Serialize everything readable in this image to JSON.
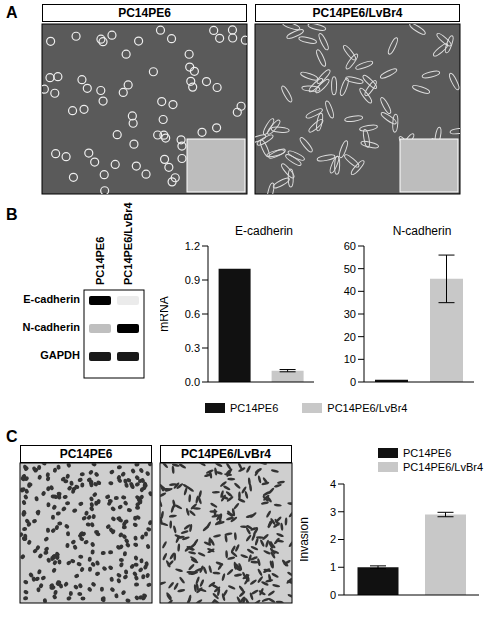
{
  "panels": {
    "A": {
      "label": "A",
      "images": [
        "PC14PE6",
        "PC14PE6/LvBr4"
      ]
    },
    "B": {
      "label": "B",
      "blot": {
        "lanes": [
          "PC14PE6",
          "PC14PE6/LvBr4"
        ],
        "rows": [
          "E-cadherin",
          "N-cadherin",
          "GAPDH"
        ]
      }
    },
    "C": {
      "label": "C",
      "images": [
        "PC14PE6",
        "PC14PE6/LvBr4"
      ]
    }
  },
  "chart_data": [
    {
      "type": "bar",
      "title": "E-cadherin",
      "y_label": "mRNA",
      "categories": [
        "PC14PE6",
        "PC14PE6/LvBr4"
      ],
      "values": [
        1.0,
        0.1
      ],
      "errors": [
        0,
        0.01
      ],
      "colors": [
        "#111111",
        "#c8c8c8"
      ],
      "ylim": [
        0,
        1.2
      ],
      "yticks": [
        {
          "value": 0,
          "label": "0.0"
        },
        {
          "value": 0.3,
          "label": "0.3"
        },
        {
          "value": 0.6,
          "label": "0.6"
        },
        {
          "value": 0.9,
          "label": "0.9"
        },
        {
          "value": 1.2,
          "label": "1.2"
        }
      ],
      "tick_labels": "y",
      "legend": "bottom"
    },
    {
      "type": "bar",
      "title": "N-cadherin",
      "categories": [
        "PC14PE6",
        "PC14PE6/LvBr4"
      ],
      "values": [
        1,
        45.5
      ],
      "errors": [
        0,
        10.5
      ],
      "colors": [
        "#111111",
        "#c8c8c8"
      ],
      "ylim": [
        0,
        60
      ],
      "yticks": [
        0,
        10,
        20,
        30,
        40,
        50,
        60
      ],
      "tick_labels": "y"
    },
    {
      "type": "bar",
      "y_label": "Invasion",
      "categories": [
        "PC14PE6",
        "PC14PE6/LvBr4"
      ],
      "values": [
        1.0,
        2.9
      ],
      "errors": [
        0.05,
        0.08
      ],
      "colors": [
        "#111111",
        "#c8c8c8"
      ],
      "ylim": [
        0,
        4
      ],
      "yticks": [
        0,
        1,
        2,
        3,
        4
      ],
      "tick_labels": "y",
      "legend": "top"
    }
  ]
}
